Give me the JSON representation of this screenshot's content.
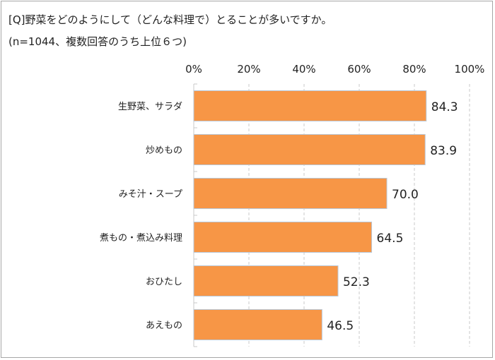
{
  "title": "[Q]野菜をどのようにして（どんな料理で）とることが多いですか。",
  "subtitle": "(n=1044、複数回答のうち上位６つ)",
  "chart_data": {
    "type": "bar",
    "orientation": "horizontal",
    "categories": [
      "生野菜、サラダ",
      "炒めもの",
      "みそ汁・スープ",
      "煮もの・煮込み料理",
      "おひたし",
      "あえもの"
    ],
    "values": [
      84.3,
      83.9,
      70.0,
      64.5,
      52.3,
      46.5
    ],
    "value_labels": [
      "84.3",
      "83.9",
      "70.0",
      "64.5",
      "52.3",
      "46.5"
    ],
    "xlim": [
      0,
      100
    ],
    "xticks": [
      "0%",
      "20%",
      "40%",
      "60%",
      "80%",
      "100%"
    ],
    "grid": true,
    "xaxis_position": "top",
    "bar_color": "#F79646"
  }
}
